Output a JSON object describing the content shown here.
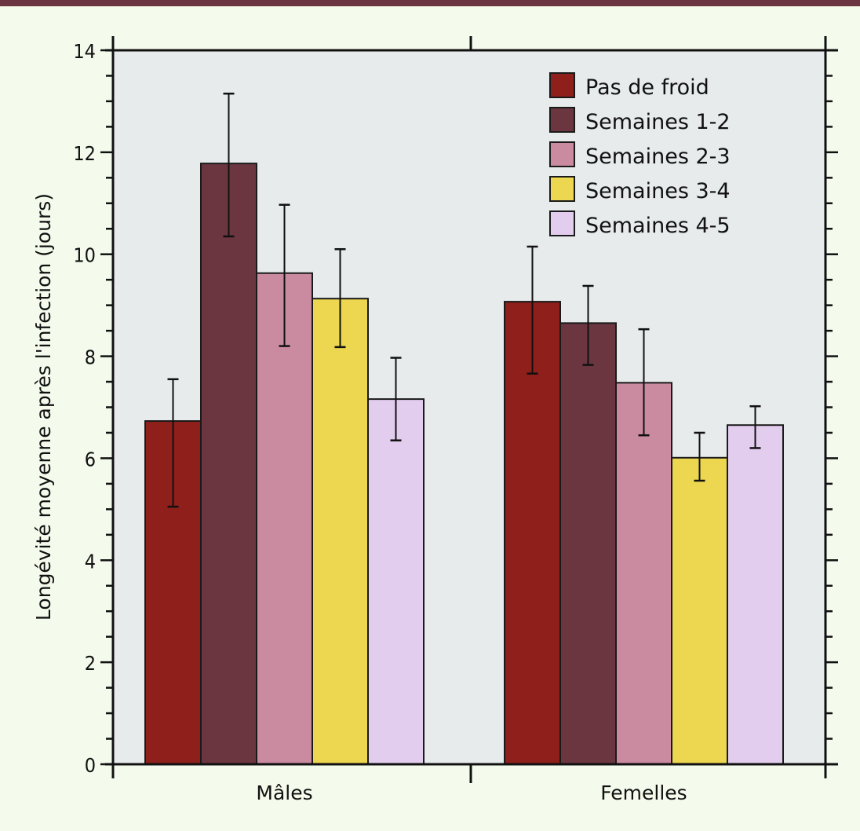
{
  "chart_data": {
    "type": "bar",
    "title": "",
    "xlabel": "",
    "ylabel": "Longévité moyenne après l'infection (jours)",
    "ylim": [
      0,
      14
    ],
    "yticks": [
      0,
      2,
      4,
      6,
      8,
      10,
      12,
      14
    ],
    "ytick_labels": [
      "0",
      "2",
      "4",
      "6",
      "8",
      "10",
      "12",
      "14"
    ],
    "y_minor_step": 0.5,
    "grid": false,
    "legend_position": "top-right",
    "categories": [
      "Mâles",
      "Femelles"
    ],
    "series": [
      {
        "name": "Pas de froid",
        "color": "#8e1f1b",
        "values": [
          6.73,
          9.07
        ],
        "error_low": [
          5.05,
          7.66
        ],
        "error_high": [
          7.55,
          10.15
        ]
      },
      {
        "name": "Semaines 1-2",
        "color": "#6b3640",
        "values": [
          11.78,
          8.65
        ],
        "error_low": [
          10.35,
          7.83
        ],
        "error_high": [
          13.15,
          9.38
        ]
      },
      {
        "name": "Semaines 2-3",
        "color": "#ca8ba0",
        "values": [
          9.63,
          7.48
        ],
        "error_low": [
          8.2,
          6.45
        ],
        "error_high": [
          10.97,
          8.53
        ]
      },
      {
        "name": "Semaines 3-4",
        "color": "#edd750",
        "values": [
          9.13,
          6.01
        ],
        "error_low": [
          8.18,
          5.56
        ],
        "error_high": [
          10.1,
          6.5
        ]
      },
      {
        "name": "Semaines 4-5",
        "color": "#e3cdef",
        "values": [
          7.16,
          6.65
        ],
        "error_low": [
          6.35,
          6.2
        ],
        "error_high": [
          7.97,
          7.02
        ]
      }
    ]
  },
  "colors": {
    "page_background": "#f4faec",
    "plot_background": "#e7ebeb",
    "top_bar": "#6b3440",
    "axis": "#111111"
  }
}
